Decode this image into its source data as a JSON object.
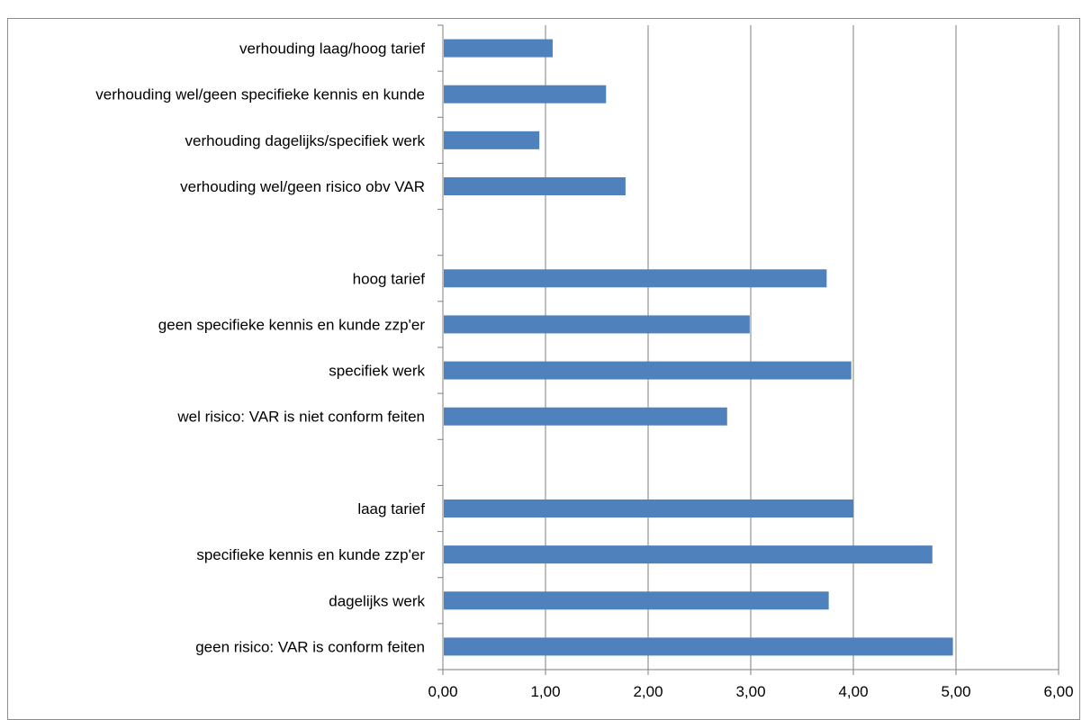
{
  "header": {
    "fragment": ""
  },
  "chart_data": {
    "type": "bar",
    "orientation": "horizontal",
    "title": "",
    "xlabel": "",
    "ylabel": "",
    "xlim": [
      0,
      6
    ],
    "x_ticks": [
      "0,00",
      "1,00",
      "2,00",
      "3,00",
      "4,00",
      "5,00",
      "6,00"
    ],
    "grid": "vertical",
    "legend": "none",
    "bar_color": "#4f81bd",
    "categories": [
      "verhouding laag/hoog tarief",
      "verhouding wel/geen specifieke kennis en kunde",
      "verhouding dagelijks/specifiek werk",
      "verhouding wel/geen risico obv VAR",
      "",
      "hoog tarief",
      "geen specifieke kennis en kunde zzp'er",
      "specifiek werk",
      "wel risico: VAR is niet conform feiten",
      "",
      "laag tarief",
      "specifieke kennis en kunde zzp'er",
      "dagelijks werk",
      "geen risico: VAR is conform feiten"
    ],
    "values": [
      1.07,
      1.59,
      0.94,
      1.78,
      null,
      3.74,
      2.99,
      3.98,
      2.77,
      null,
      4.0,
      4.77,
      3.76,
      4.97
    ]
  }
}
